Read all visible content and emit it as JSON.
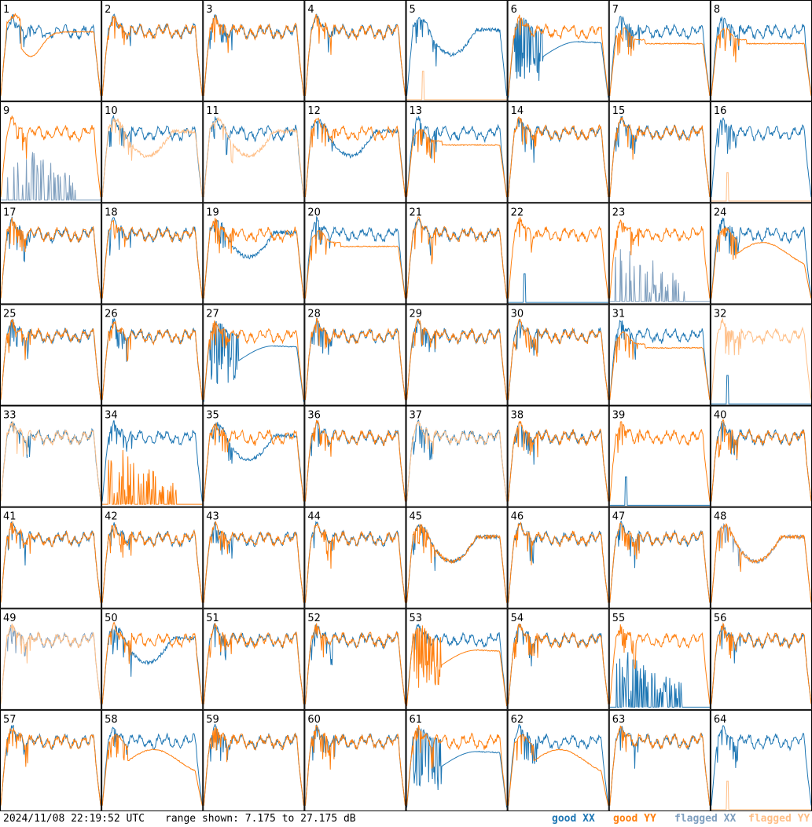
{
  "footer": {
    "timestamp": "2024/11/08 22:19:52 UTC",
    "range_text": "range shown: 7.175 to 27.175 dB"
  },
  "legend": {
    "good_xx": "good XX",
    "good_yy": "good YY",
    "flagged_xx": "flagged XX",
    "flagged_yy": "flagged YY"
  },
  "colors": {
    "good_xx": "#1f77b4",
    "good_yy": "#ff7f0e",
    "flagged_xx": "#7f9fbf",
    "flagged_yy": "#ffbf87"
  },
  "chart_data": {
    "type": "line",
    "title": "",
    "grid": {
      "rows": 8,
      "cols": 8
    },
    "ylim": [
      7.175,
      27.175
    ],
    "ylabel": "",
    "xlabel": "",
    "tiles": [
      {
        "label": "1",
        "xx": {
          "shape": "normal",
          "flagged": false
        },
        "yy": {
          "shape": "dip_drop",
          "flagged": false
        }
      },
      {
        "label": "2",
        "xx": {
          "shape": "normal",
          "flagged": false
        },
        "yy": {
          "shape": "normal",
          "flagged": false
        }
      },
      {
        "label": "3",
        "xx": {
          "shape": "normal",
          "flagged": false
        },
        "yy": {
          "shape": "normal",
          "flagged": false
        }
      },
      {
        "label": "4",
        "xx": {
          "shape": "normal",
          "flagged": false
        },
        "yy": {
          "shape": "normal",
          "flagged": false
        }
      },
      {
        "label": "5",
        "xx": {
          "shape": "dip",
          "flagged": false
        },
        "yy": {
          "shape": "dead",
          "flagged": true
        }
      },
      {
        "label": "6",
        "xx": {
          "shape": "deep_dip",
          "flagged": false
        },
        "yy": {
          "shape": "normal",
          "flagged": false
        }
      },
      {
        "label": "7",
        "xx": {
          "shape": "normal",
          "flagged": false
        },
        "yy": {
          "shape": "low",
          "flagged": false
        }
      },
      {
        "label": "8",
        "xx": {
          "shape": "normal",
          "flagged": false
        },
        "yy": {
          "shape": "low",
          "flagged": false
        }
      },
      {
        "label": "9",
        "xx": {
          "shape": "dead_noisy",
          "flagged": true
        },
        "yy": {
          "shape": "normal",
          "flagged": false
        }
      },
      {
        "label": "10",
        "xx": {
          "shape": "normal",
          "flagged": false
        },
        "yy": {
          "shape": "dip",
          "flagged": true
        }
      },
      {
        "label": "11",
        "xx": {
          "shape": "normal",
          "flagged": false
        },
        "yy": {
          "shape": "dip",
          "flagged": true
        }
      },
      {
        "label": "12",
        "xx": {
          "shape": "dip",
          "flagged": false
        },
        "yy": {
          "shape": "normal",
          "flagged": false
        }
      },
      {
        "label": "13",
        "xx": {
          "shape": "normal",
          "flagged": false
        },
        "yy": {
          "shape": "low",
          "flagged": false
        }
      },
      {
        "label": "14",
        "xx": {
          "shape": "normal",
          "flagged": false
        },
        "yy": {
          "shape": "normal",
          "flagged": false
        }
      },
      {
        "label": "15",
        "xx": {
          "shape": "normal",
          "flagged": false
        },
        "yy": {
          "shape": "normal",
          "flagged": false
        }
      },
      {
        "label": "16",
        "xx": {
          "shape": "normal",
          "flagged": false
        },
        "yy": {
          "shape": "dead",
          "flagged": true
        }
      },
      {
        "label": "17",
        "xx": {
          "shape": "normal",
          "flagged": false
        },
        "yy": {
          "shape": "normal",
          "flagged": false
        }
      },
      {
        "label": "18",
        "xx": {
          "shape": "normal",
          "flagged": false
        },
        "yy": {
          "shape": "normal",
          "flagged": false
        }
      },
      {
        "label": "19",
        "xx": {
          "shape": "dip",
          "flagged": false
        },
        "yy": {
          "shape": "normal",
          "flagged": false
        }
      },
      {
        "label": "20",
        "xx": {
          "shape": "normal",
          "flagged": false
        },
        "yy": {
          "shape": "low",
          "flagged": false
        }
      },
      {
        "label": "21",
        "xx": {
          "shape": "normal",
          "flagged": false
        },
        "yy": {
          "shape": "normal",
          "flagged": false
        }
      },
      {
        "label": "22",
        "xx": {
          "shape": "dead",
          "flagged": false
        },
        "yy": {
          "shape": "normal",
          "flagged": false
        }
      },
      {
        "label": "23",
        "xx": {
          "shape": "dead_noisy",
          "flagged": true
        },
        "yy": {
          "shape": "normal",
          "flagged": false
        }
      },
      {
        "label": "24",
        "xx": {
          "shape": "normal",
          "flagged": false
        },
        "yy": {
          "shape": "dip_low",
          "flagged": false
        }
      },
      {
        "label": "25",
        "xx": {
          "shape": "normal",
          "flagged": false
        },
        "yy": {
          "shape": "normal",
          "flagged": false
        }
      },
      {
        "label": "26",
        "xx": {
          "shape": "normal",
          "flagged": false
        },
        "yy": {
          "shape": "normal",
          "flagged": false
        }
      },
      {
        "label": "27",
        "xx": {
          "shape": "deep_dip",
          "flagged": false
        },
        "yy": {
          "shape": "normal",
          "flagged": false
        }
      },
      {
        "label": "28",
        "xx": {
          "shape": "normal",
          "flagged": false
        },
        "yy": {
          "shape": "normal",
          "flagged": false
        }
      },
      {
        "label": "29",
        "xx": {
          "shape": "normal",
          "flagged": false
        },
        "yy": {
          "shape": "normal",
          "flagged": false
        }
      },
      {
        "label": "30",
        "xx": {
          "shape": "normal",
          "flagged": false
        },
        "yy": {
          "shape": "normal",
          "flagged": false
        }
      },
      {
        "label": "31",
        "xx": {
          "shape": "normal",
          "flagged": false
        },
        "yy": {
          "shape": "low",
          "flagged": false
        }
      },
      {
        "label": "32",
        "xx": {
          "shape": "dead",
          "flagged": false
        },
        "yy": {
          "shape": "normal",
          "flagged": true
        }
      },
      {
        "label": "33",
        "xx": {
          "shape": "normal",
          "flagged": false
        },
        "yy": {
          "shape": "normal",
          "flagged": true
        }
      },
      {
        "label": "34",
        "xx": {
          "shape": "normal",
          "flagged": false
        },
        "yy": {
          "shape": "dead_noisy",
          "flagged": false
        }
      },
      {
        "label": "35",
        "xx": {
          "shape": "dip",
          "flagged": false
        },
        "yy": {
          "shape": "normal",
          "flagged": false
        }
      },
      {
        "label": "36",
        "xx": {
          "shape": "normal",
          "flagged": false
        },
        "yy": {
          "shape": "normal",
          "flagged": false
        }
      },
      {
        "label": "37",
        "xx": {
          "shape": "normal",
          "flagged": false
        },
        "yy": {
          "shape": "normal",
          "flagged": true
        }
      },
      {
        "label": "38",
        "xx": {
          "shape": "normal",
          "flagged": false
        },
        "yy": {
          "shape": "normal",
          "flagged": false
        }
      },
      {
        "label": "39",
        "xx": {
          "shape": "dead",
          "flagged": false
        },
        "yy": {
          "shape": "normal",
          "flagged": false
        }
      },
      {
        "label": "40",
        "xx": {
          "shape": "normal",
          "flagged": false
        },
        "yy": {
          "shape": "normal",
          "flagged": false
        }
      },
      {
        "label": "41",
        "xx": {
          "shape": "normal",
          "flagged": false
        },
        "yy": {
          "shape": "normal",
          "flagged": false
        }
      },
      {
        "label": "42",
        "xx": {
          "shape": "normal",
          "flagged": false
        },
        "yy": {
          "shape": "normal",
          "flagged": false
        }
      },
      {
        "label": "43",
        "xx": {
          "shape": "normal",
          "flagged": false
        },
        "yy": {
          "shape": "normal",
          "flagged": false
        }
      },
      {
        "label": "44",
        "xx": {
          "shape": "normal",
          "flagged": false
        },
        "yy": {
          "shape": "normal",
          "flagged": false
        }
      },
      {
        "label": "45",
        "xx": {
          "shape": "dip",
          "flagged": false
        },
        "yy": {
          "shape": "dip",
          "flagged": false
        }
      },
      {
        "label": "46",
        "xx": {
          "shape": "normal",
          "flagged": false
        },
        "yy": {
          "shape": "normal",
          "flagged": false
        }
      },
      {
        "label": "47",
        "xx": {
          "shape": "normal",
          "flagged": false
        },
        "yy": {
          "shape": "normal",
          "flagged": false
        }
      },
      {
        "label": "48",
        "xx": {
          "shape": "dip",
          "flagged": true
        },
        "yy": {
          "shape": "dip",
          "flagged": false
        }
      },
      {
        "label": "49",
        "xx": {
          "shape": "normal",
          "flagged": true
        },
        "yy": {
          "shape": "normal",
          "flagged": true
        }
      },
      {
        "label": "50",
        "xx": {
          "shape": "dip",
          "flagged": false
        },
        "yy": {
          "shape": "normal",
          "flagged": false
        }
      },
      {
        "label": "51",
        "xx": {
          "shape": "normal",
          "flagged": false
        },
        "yy": {
          "shape": "normal",
          "flagged": false
        }
      },
      {
        "label": "52",
        "xx": {
          "shape": "normal",
          "flagged": false
        },
        "yy": {
          "shape": "normal",
          "flagged": false
        }
      },
      {
        "label": "53",
        "xx": {
          "shape": "normal",
          "flagged": false
        },
        "yy": {
          "shape": "deep_dip",
          "flagged": false
        }
      },
      {
        "label": "54",
        "xx": {
          "shape": "normal",
          "flagged": false
        },
        "yy": {
          "shape": "normal",
          "flagged": false
        }
      },
      {
        "label": "55",
        "xx": {
          "shape": "dead_noisy",
          "flagged": false
        },
        "yy": {
          "shape": "normal",
          "flagged": false
        }
      },
      {
        "label": "56",
        "xx": {
          "shape": "normal",
          "flagged": false
        },
        "yy": {
          "shape": "normal",
          "flagged": false
        }
      },
      {
        "label": "57",
        "xx": {
          "shape": "normal",
          "flagged": false
        },
        "yy": {
          "shape": "normal",
          "flagged": false
        }
      },
      {
        "label": "58",
        "xx": {
          "shape": "normal",
          "flagged": false
        },
        "yy": {
          "shape": "dip_low",
          "flagged": false
        }
      },
      {
        "label": "59",
        "xx": {
          "shape": "normal",
          "flagged": false
        },
        "yy": {
          "shape": "normal",
          "flagged": false
        }
      },
      {
        "label": "60",
        "xx": {
          "shape": "normal",
          "flagged": false
        },
        "yy": {
          "shape": "normal",
          "flagged": false
        }
      },
      {
        "label": "61",
        "xx": {
          "shape": "deep_dip",
          "flagged": false
        },
        "yy": {
          "shape": "normal",
          "flagged": false
        }
      },
      {
        "label": "62",
        "xx": {
          "shape": "normal",
          "flagged": false
        },
        "yy": {
          "shape": "dip_low",
          "flagged": false
        }
      },
      {
        "label": "63",
        "xx": {
          "shape": "normal",
          "flagged": false
        },
        "yy": {
          "shape": "normal",
          "flagged": false
        }
      },
      {
        "label": "64",
        "xx": {
          "shape": "normal",
          "flagged": false
        },
        "yy": {
          "shape": "dead",
          "flagged": true
        }
      }
    ]
  }
}
